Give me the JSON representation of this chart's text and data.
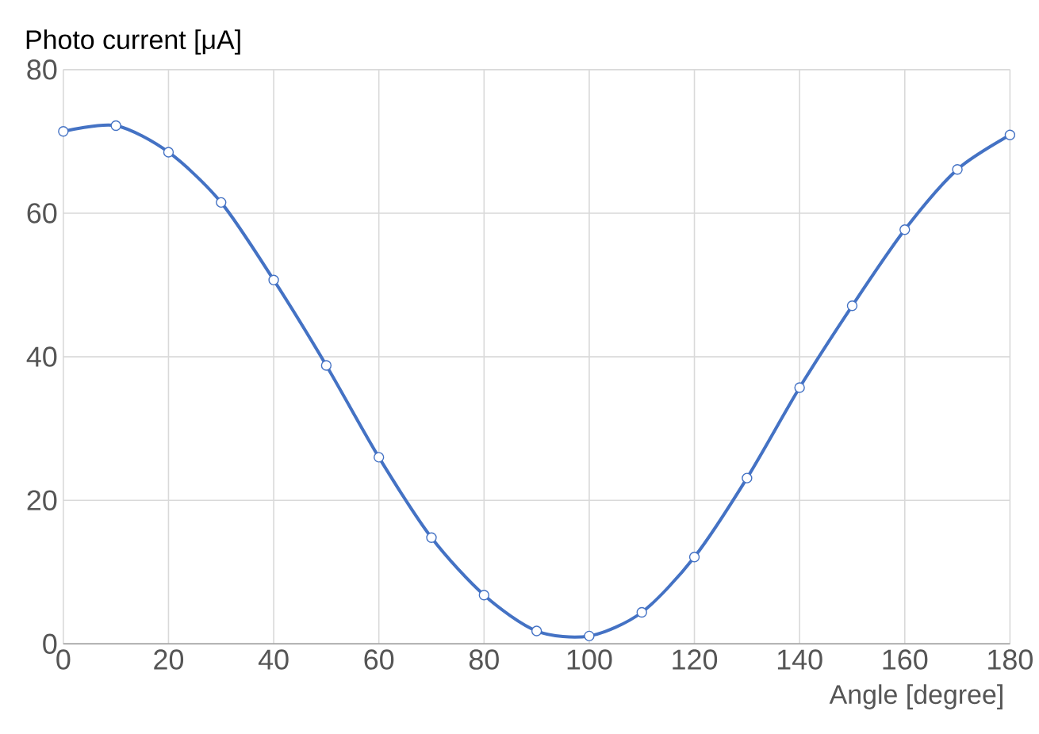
{
  "chart_data": {
    "type": "line",
    "xlabel": "Angle [degree]",
    "ylabel": "Photo current [μA]",
    "x": [
      0,
      10,
      20,
      30,
      40,
      50,
      60,
      70,
      80,
      90,
      100,
      110,
      120,
      130,
      140,
      150,
      160,
      170,
      180
    ],
    "series": [
      {
        "color": "#4472c4",
        "values": [
          71.4,
          72.2,
          68.5,
          61.5,
          50.7,
          38.8,
          26.0,
          14.8,
          6.8,
          1.8,
          1.1,
          4.4,
          12.1,
          23.1,
          35.7,
          47.1,
          57.7,
          66.1,
          70.9
        ]
      }
    ],
    "xlim": [
      0,
      180
    ],
    "ylim": [
      0,
      80
    ],
    "xticks": [
      0,
      20,
      40,
      60,
      80,
      100,
      120,
      140,
      160,
      180
    ],
    "yticks": [
      0,
      20,
      40,
      60,
      80
    ],
    "grid": true,
    "marker": "circle",
    "line_style": "solid"
  }
}
